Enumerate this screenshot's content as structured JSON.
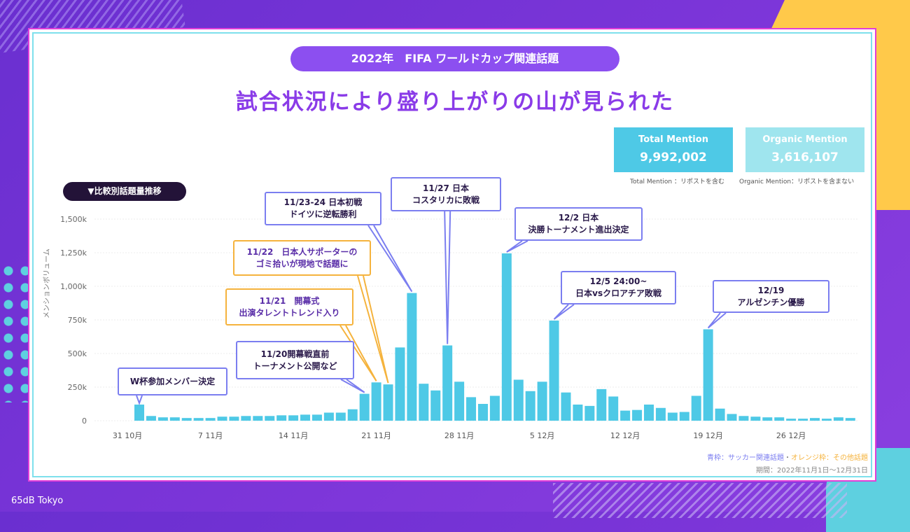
{
  "header": {
    "pill": "2022年　FIFA ワールドカップ関連話題",
    "headline": "試合状況により盛り上がりの山が見られた"
  },
  "stats": {
    "total_label": "Total Mention",
    "total_value": "9,992,002",
    "organic_label": "Organic Mention",
    "organic_value": "3,616,107",
    "total_note": "Total Mention ：リポストを含む",
    "organic_note": "Organic Mention：リポストを含まない",
    "colors": {
      "total": "#4ec9e6",
      "organic": "#9fe5ee"
    }
  },
  "section_label": "▼比較別話題量推移",
  "callouts": [
    {
      "date": "2022-11-01",
      "lines": [
        "W杯参加メンバー決定"
      ],
      "type": "soccer"
    },
    {
      "date": "2022-11-20",
      "lines": [
        "11/20開幕戦直前",
        "トーナメント公開など"
      ],
      "type": "soccer"
    },
    {
      "date": "2022-11-21",
      "lines": [
        "11/21　開幕式",
        "出演タレントトレンド入り"
      ],
      "type": "other"
    },
    {
      "date": "2022-11-22",
      "lines": [
        "11/22　日本人サポーターの",
        "ゴミ拾いが現地で話題に"
      ],
      "type": "other"
    },
    {
      "date": "2022-11-24",
      "lines": [
        "11/23-24 日本初戦",
        "ドイツに逆転勝利"
      ],
      "type": "soccer"
    },
    {
      "date": "2022-11-27",
      "lines": [
        "11/27 日本",
        "コスタリカに敗戦"
      ],
      "type": "soccer"
    },
    {
      "date": "2022-12-02",
      "lines": [
        "12/2 日本",
        "決勝トーナメント進出決定"
      ],
      "type": "soccer"
    },
    {
      "date": "2022-12-06",
      "lines": [
        "12/5 24:00~",
        "日本vsクロアチア敗戦"
      ],
      "type": "soccer"
    },
    {
      "date": "2022-12-19",
      "lines": [
        "12/19",
        "アルゼンチン優勝"
      ],
      "type": "soccer"
    }
  ],
  "chart_data": {
    "type": "bar",
    "ylabel": "メンションボリューム",
    "ylim": [
      0,
      1500000
    ],
    "yticks": [
      "0",
      "250k",
      "500k",
      "750k",
      "1,000k",
      "1,250k",
      "1,500k"
    ],
    "xticks": [
      "31 10月",
      "7 11月",
      "14 11月",
      "21 11月",
      "28 11月",
      "5 12月",
      "12 12月",
      "19 12月",
      "26 12月"
    ],
    "x_start": "2022-11-01",
    "x_end": "2022-12-31",
    "bar_color": "#4ec9e6",
    "grid": true,
    "values": [
      120000,
      35000,
      25000,
      25000,
      20000,
      20000,
      20000,
      30000,
      30000,
      35000,
      35000,
      35000,
      40000,
      40000,
      45000,
      45000,
      60000,
      60000,
      85000,
      200000,
      285000,
      270000,
      545000,
      950000,
      275000,
      225000,
      560000,
      290000,
      175000,
      125000,
      185000,
      1245000,
      305000,
      220000,
      290000,
      745000,
      210000,
      120000,
      110000,
      235000,
      180000,
      75000,
      80000,
      120000,
      95000,
      60000,
      65000,
      185000,
      680000,
      90000,
      50000,
      35000,
      30000,
      25000,
      25000,
      15000,
      15000,
      20000,
      15000,
      25000,
      20000
    ]
  },
  "legend": {
    "soccer": "青枠：サッカー関連話題",
    "sep": "・",
    "other": "オレンジ枠：その他話題",
    "soccer_color": "#7b7ef0",
    "other_color": "#f5b33d"
  },
  "period": "期間：2022年11月1日～12月31日",
  "brand": "65dB Tokyo"
}
